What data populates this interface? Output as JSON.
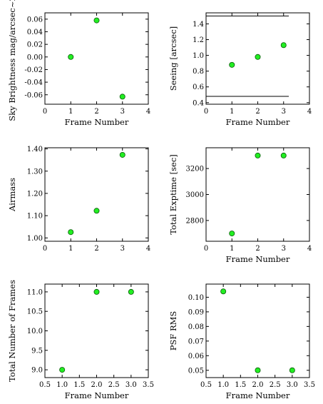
{
  "colors": {
    "point": "#22ee22",
    "axis": "#000000",
    "background": "#ffffff"
  },
  "chart_data": [
    {
      "type": "scatter",
      "xlabel": "Frame Number",
      "ylabel": "Sky Brightness mag/arcsec~2",
      "xlim": [
        0,
        4
      ],
      "ylim": [
        -0.075,
        0.07
      ],
      "xticks": [
        0,
        1,
        2,
        3,
        4
      ],
      "xtick_labels": [
        "0",
        "1",
        "2",
        "3",
        "4"
      ],
      "yticks": [
        -0.06,
        -0.04,
        -0.02,
        0.0,
        0.02,
        0.04,
        0.06
      ],
      "ytick_labels": [
        "-0.06",
        "-0.04",
        "-0.02",
        "0.00",
        "0.02",
        "0.04",
        "0.06"
      ],
      "series": [
        {
          "x": [
            1,
            2,
            3
          ],
          "y": [
            0.0,
            0.058,
            -0.063
          ]
        }
      ]
    },
    {
      "type": "scatter",
      "xlabel": "Frame Number",
      "ylabel": "Seeing [arcsec]",
      "xlim": [
        0,
        4
      ],
      "ylim": [
        0.38,
        1.54
      ],
      "xticks": [
        0,
        1,
        2,
        3,
        4
      ],
      "xtick_labels": [
        "0",
        "1",
        "2",
        "3",
        "4"
      ],
      "yticks": [
        0.4,
        0.6,
        0.8,
        1.0,
        1.2,
        1.4
      ],
      "ytick_labels": [
        "0.4",
        "0.6",
        "0.8",
        "1.0",
        "1.2",
        "1.4"
      ],
      "series": [
        {
          "x": [
            1,
            2,
            3
          ],
          "y": [
            0.88,
            0.98,
            1.13
          ]
        }
      ],
      "hlines": [
        {
          "y": 1.5,
          "xmin": 0,
          "xmax": 3.2
        },
        {
          "y": 0.48,
          "xmin": 0,
          "xmax": 3.2
        }
      ]
    },
    {
      "type": "scatter",
      "xlabel": "",
      "ylabel": "Airmass",
      "xlim": [
        0,
        4
      ],
      "ylim": [
        0.985,
        1.405
      ],
      "xticks": [
        0,
        1,
        2,
        3,
        4
      ],
      "xtick_labels": [
        "0",
        "1",
        "2",
        "3",
        "4"
      ],
      "yticks": [
        1.0,
        1.1,
        1.2,
        1.3,
        1.4
      ],
      "ytick_labels": [
        "1.00",
        "1.10",
        "1.20",
        "1.30",
        "1.40"
      ],
      "series": [
        {
          "x": [
            1,
            2,
            3
          ],
          "y": [
            1.026,
            1.122,
            1.373
          ]
        }
      ]
    },
    {
      "type": "scatter",
      "xlabel": "Frame Number",
      "ylabel": "Total Exptime [sec]",
      "xlim": [
        0,
        4
      ],
      "ylim": [
        2640,
        3360
      ],
      "xticks": [
        0,
        1,
        2,
        3,
        4
      ],
      "xtick_labels": [
        "0",
        "1",
        "2",
        "3",
        "4"
      ],
      "yticks": [
        2800,
        3000,
        3200
      ],
      "ytick_labels": [
        "2800",
        "3000",
        "3200"
      ],
      "series": [
        {
          "x": [
            1,
            2,
            3
          ],
          "y": [
            2700,
            3300,
            3300
          ]
        }
      ]
    },
    {
      "type": "scatter",
      "xlabel": "Frame Number",
      "ylabel": "Total Number of Frames",
      "xlim": [
        0.5,
        3.5
      ],
      "ylim": [
        8.8,
        11.2
      ],
      "xticks": [
        0.5,
        1.0,
        1.5,
        2.0,
        2.5,
        3.0,
        3.5
      ],
      "xtick_labels": [
        "0.5",
        "1.0",
        "1.5",
        "2.0",
        "2.5",
        "3.0",
        "3.5"
      ],
      "yticks": [
        9.0,
        9.5,
        10.0,
        10.5,
        11.0
      ],
      "ytick_labels": [
        "9.0",
        "9.5",
        "10.0",
        "10.5",
        "11.0"
      ],
      "series": [
        {
          "x": [
            1,
            2,
            3
          ],
          "y": [
            9.0,
            11.0,
            11.0
          ]
        }
      ]
    },
    {
      "type": "scatter",
      "xlabel": "Frame Number",
      "ylabel": "PSF RMS",
      "xlim": [
        0.5,
        3.5
      ],
      "ylim": [
        0.045,
        0.109
      ],
      "xticks": [
        0.5,
        1.0,
        1.5,
        2.0,
        2.5,
        3.0,
        3.5
      ],
      "xtick_labels": [
        "0.5",
        "1.0",
        "1.5",
        "2.0",
        "2.5",
        "3.0",
        "3.5"
      ],
      "yticks": [
        0.05,
        0.06,
        0.07,
        0.08,
        0.09,
        0.1
      ],
      "ytick_labels": [
        "0.05",
        "0.06",
        "0.07",
        "0.08",
        "0.09",
        "0.10"
      ],
      "series": [
        {
          "x": [
            1,
            2,
            3
          ],
          "y": [
            0.104,
            0.05,
            0.05
          ]
        }
      ]
    }
  ]
}
